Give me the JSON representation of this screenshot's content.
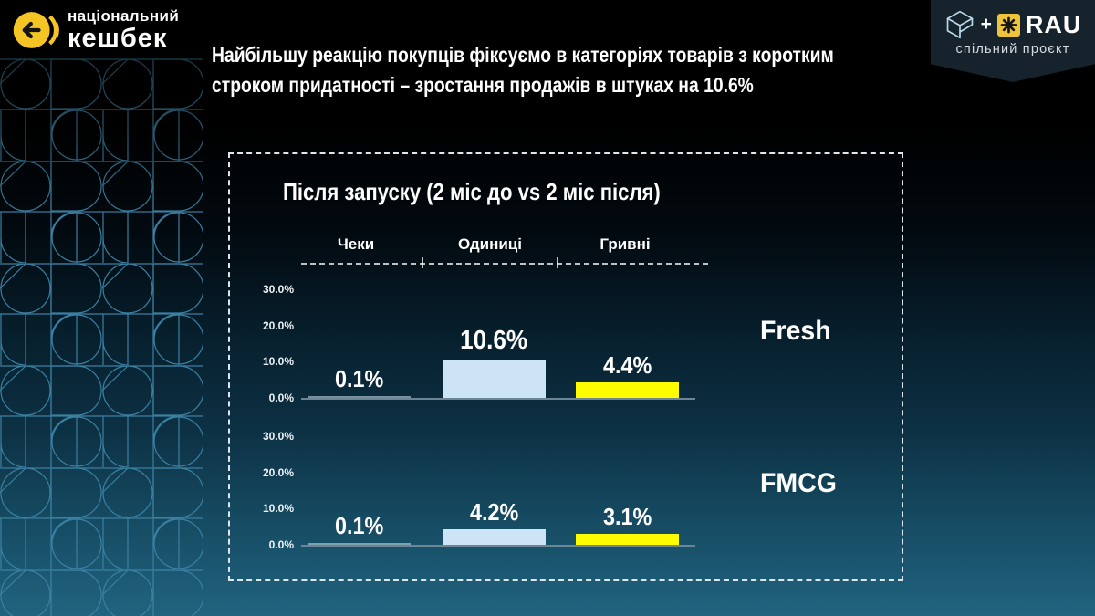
{
  "brand": {
    "line1": "національний",
    "line2": "кешбек"
  },
  "headline": {
    "line1": "Найбільшу реакцію покупців фіксуємо в категоріях товарів з коротким",
    "line2": "строком придатності – зростання продажів в штуках на 10.6%"
  },
  "partner": {
    "plus": "+",
    "name": "RAU",
    "subtitle": "спільний проєкт"
  },
  "panel": {
    "title": "Після запуску (2 міс до vs 2 міс після)",
    "columns": [
      "Чеки",
      "Одиниці",
      "Гривні"
    ],
    "y_ticks": [
      "30.0%",
      "20.0%",
      "10.0%",
      "0.0%"
    ],
    "rows": [
      {
        "label": "Fresh",
        "values": [
          "0.1%",
          "10.6%",
          "4.4%"
        ]
      },
      {
        "label": "FMCG",
        "values": [
          "0.1%",
          "4.2%",
          "3.1%"
        ]
      }
    ]
  },
  "colors": {
    "bar_blue": "#cde4f6",
    "bar_yellow": "#fdfd00",
    "brand_yellow": "#f5c425",
    "background_teal": "#216480"
  },
  "chart_data": [
    {
      "type": "bar",
      "group": "Fresh",
      "title": "Після запуску (2 міс до vs 2 міс після)",
      "categories": [
        "Чеки",
        "Одиниці",
        "Гривні"
      ],
      "values": [
        0.1,
        10.6,
        4.4
      ],
      "unit": "%",
      "ylim": [
        0,
        30
      ],
      "yticks": [
        0,
        10,
        20,
        30
      ],
      "bar_colors": [
        "rgba(210,228,238,0.55)",
        "#cde4f6",
        "#fdfd00"
      ],
      "grid": false,
      "legend": false
    },
    {
      "type": "bar",
      "group": "FMCG",
      "title": "Після запуску (2 міс до vs 2 міс після)",
      "categories": [
        "Чеки",
        "Одиниці",
        "Гривні"
      ],
      "values": [
        0.1,
        4.2,
        3.1
      ],
      "unit": "%",
      "ylim": [
        0,
        30
      ],
      "yticks": [
        0,
        10,
        20,
        30
      ],
      "bar_colors": [
        "rgba(210,228,238,0.55)",
        "#cde4f6",
        "#fdfd00"
      ],
      "grid": false,
      "legend": false
    }
  ]
}
